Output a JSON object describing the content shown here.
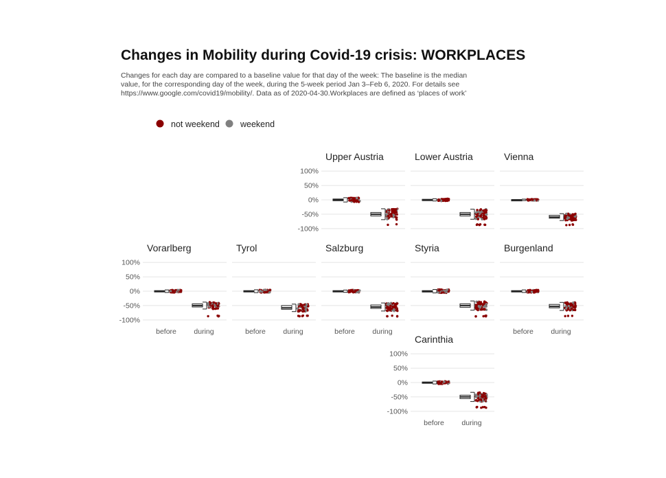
{
  "chart_data": {
    "type": "scatter",
    "title": "Changes in Mobility during Covid-19 crisis: WORKPLACES",
    "subtitle": [
      "Changes for each day are compared to a baseline value for that day of the week: The baseline is the median",
      "value, for the corresponding day of the week, during the 5-week period Jan 3–Feb 6, 2020. For details see",
      "https://www.google.com/covid19/mobility/. Data as of 2020-04-30.Workplaces are defined as ‘places of work’"
    ],
    "legend": {
      "placement": "top-left",
      "items": [
        {
          "label": "not weekend",
          "color": "#8b0000"
        },
        {
          "label": "weekend",
          "color": "#808080"
        }
      ]
    },
    "categories": [
      "before",
      "during"
    ],
    "y_ticks": [
      "100%",
      "50%",
      "0%",
      "-50%",
      "-100%"
    ],
    "y_tick_values": [
      100,
      50,
      0,
      -50,
      -100
    ],
    "ylim": [
      -110,
      110
    ],
    "grid": true,
    "panels": [
      {
        "name": "Upper Austria",
        "before_median": 0,
        "before_q1": -3,
        "before_q3": 3,
        "before_spread": 15,
        "during_median": -50,
        "during_q1": -56,
        "during_q3": -44,
        "during_spread": 38,
        "low": -88,
        "show_y": true,
        "show_x": false
      },
      {
        "name": "Lower Austria",
        "before_median": 0,
        "before_q1": -2,
        "before_q3": 2,
        "before_spread": 8,
        "during_median": -50,
        "during_q1": -56,
        "during_q3": -44,
        "during_spread": 35,
        "low": -88,
        "show_y": false,
        "show_x": false
      },
      {
        "name": "Vienna",
        "before_median": 0,
        "before_q1": -1,
        "before_q3": 1,
        "before_spread": 5,
        "during_median": -60,
        "during_q1": -64,
        "during_q3": -54,
        "during_spread": 24,
        "low": -88,
        "show_y": false,
        "show_x": false
      },
      {
        "name": "Vorarlberg",
        "before_median": 0,
        "before_q1": -2,
        "before_q3": 2,
        "before_spread": 9,
        "during_median": -50,
        "during_q1": -55,
        "during_q3": -44,
        "during_spread": 24,
        "low": -88,
        "show_y": true,
        "show_x": true
      },
      {
        "name": "Tyrol",
        "before_median": 0,
        "before_q1": -2,
        "before_q3": 2,
        "before_spread": 10,
        "during_median": -58,
        "during_q1": -63,
        "during_q3": -50,
        "during_spread": 26,
        "low": -88,
        "show_y": false,
        "show_x": true
      },
      {
        "name": "Salzburg",
        "before_median": 0,
        "before_q1": -2,
        "before_q3": 2,
        "before_spread": 8,
        "during_median": -55,
        "during_q1": -60,
        "during_q3": -48,
        "during_spread": 28,
        "low": -88,
        "show_y": false,
        "show_x": true
      },
      {
        "name": "Styria",
        "before_median": 0,
        "before_q1": -3,
        "before_q3": 2,
        "before_spread": 12,
        "during_median": -50,
        "during_q1": -56,
        "during_q3": -44,
        "during_spread": 32,
        "low": -88,
        "show_y": false,
        "show_x": false
      },
      {
        "name": "Burgenland",
        "before_median": 0,
        "before_q1": -2,
        "before_q3": 2,
        "before_spread": 9,
        "during_median": -53,
        "during_q1": -58,
        "during_q3": -46,
        "during_spread": 28,
        "low": -88,
        "show_y": false,
        "show_x": true
      },
      {
        "name": "Carinthia",
        "before_median": 0,
        "before_q1": -2,
        "before_q3": 2,
        "before_spread": 10,
        "during_median": -50,
        "during_q1": -56,
        "during_q3": -44,
        "during_spread": 32,
        "low": -88,
        "show_y": true,
        "show_x": true
      }
    ]
  }
}
